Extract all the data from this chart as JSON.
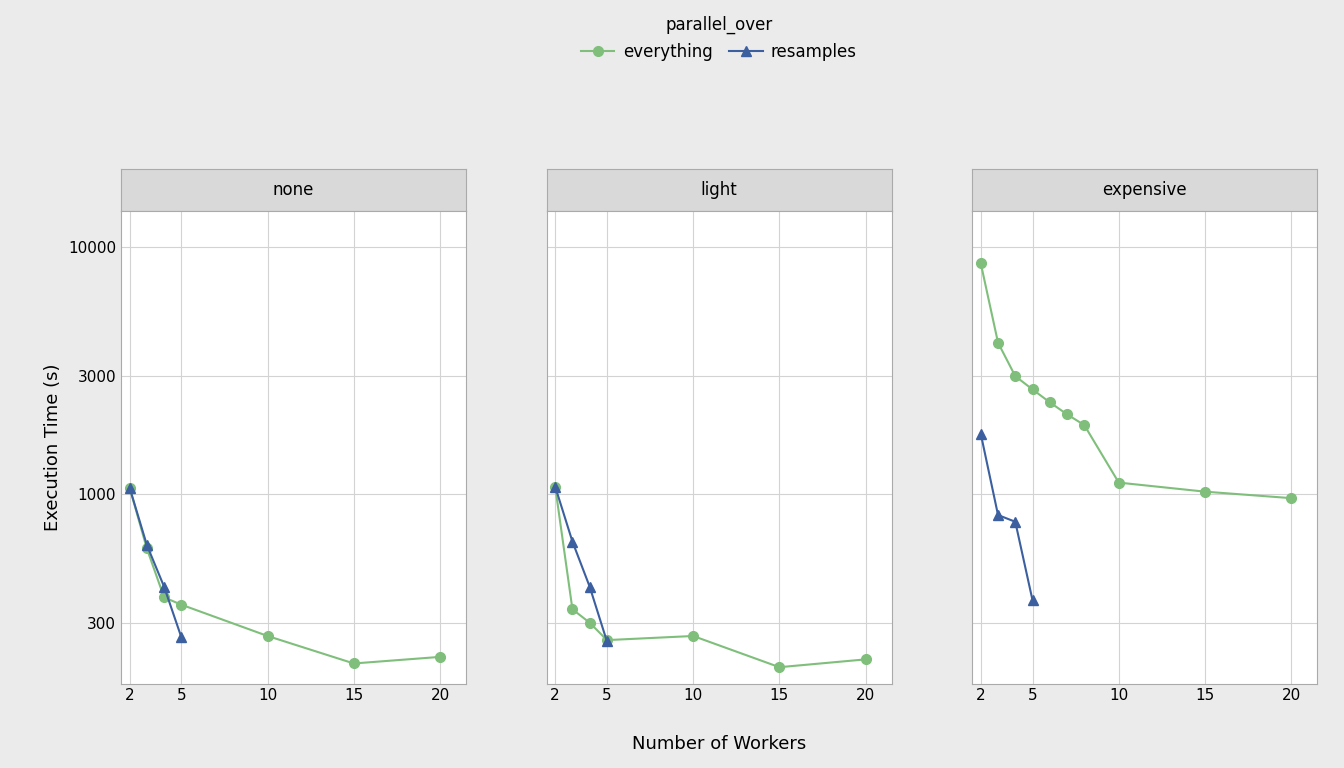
{
  "panels": [
    "none",
    "light",
    "expensive"
  ],
  "xlabel": "Number of Workers",
  "ylabel": "Execution Time (s)",
  "legend_title": "parallel_over",
  "series_order": [
    "everything",
    "resamples"
  ],
  "series": {
    "everything": {
      "color": "#7fbf7b",
      "marker": "o",
      "label": "everything"
    },
    "resamples": {
      "color": "#3c5fa0",
      "marker": "^",
      "label": "resamples"
    }
  },
  "data": {
    "none": {
      "everything": {
        "x": [
          2,
          3,
          4,
          5,
          10,
          15,
          20
        ],
        "y": [
          1060,
          600,
          380,
          355,
          265,
          205,
          218
        ]
      },
      "resamples": {
        "x": [
          2,
          3,
          4,
          5
        ],
        "y": [
          1060,
          620,
          420,
          262
        ]
      }
    },
    "light": {
      "everything": {
        "x": [
          2,
          3,
          4,
          5,
          10,
          15,
          20
        ],
        "y": [
          1070,
          340,
          300,
          255,
          265,
          198,
          213
        ]
      },
      "resamples": {
        "x": [
          2,
          3,
          4,
          5
        ],
        "y": [
          1070,
          640,
          420,
          252
        ]
      }
    },
    "expensive": {
      "everything": {
        "x": [
          2,
          3,
          4,
          5,
          6,
          7,
          8,
          10,
          15,
          20
        ],
        "y": [
          8600,
          4100,
          3000,
          2650,
          2350,
          2100,
          1900,
          1110,
          1020,
          960
        ]
      },
      "resamples": {
        "x": [
          2,
          3,
          4,
          5
        ],
        "y": [
          1750,
          820,
          770,
          370
        ]
      }
    }
  },
  "yticks": [
    300,
    1000,
    3000,
    10000
  ],
  "ytick_labels": [
    "300",
    "1000",
    "3000",
    "10000"
  ],
  "ylim": [
    170,
    14000
  ],
  "xticks": [
    2,
    5,
    10,
    15,
    20
  ],
  "xtick_labels": [
    "2",
    "5",
    "10",
    "15",
    "20"
  ],
  "xlim": [
    1.5,
    21.5
  ],
  "panel_bg": "#ebebeb",
  "plot_bg": "#ffffff",
  "grid_color": "#d3d3d3",
  "strip_bg": "#d9d9d9",
  "strip_border": "#aaaaaa",
  "title_fontsize": 12,
  "axis_label_fontsize": 13,
  "tick_fontsize": 11,
  "legend_fontsize": 12,
  "legend_title_fontsize": 12,
  "line_width": 1.5,
  "marker_size": 7
}
